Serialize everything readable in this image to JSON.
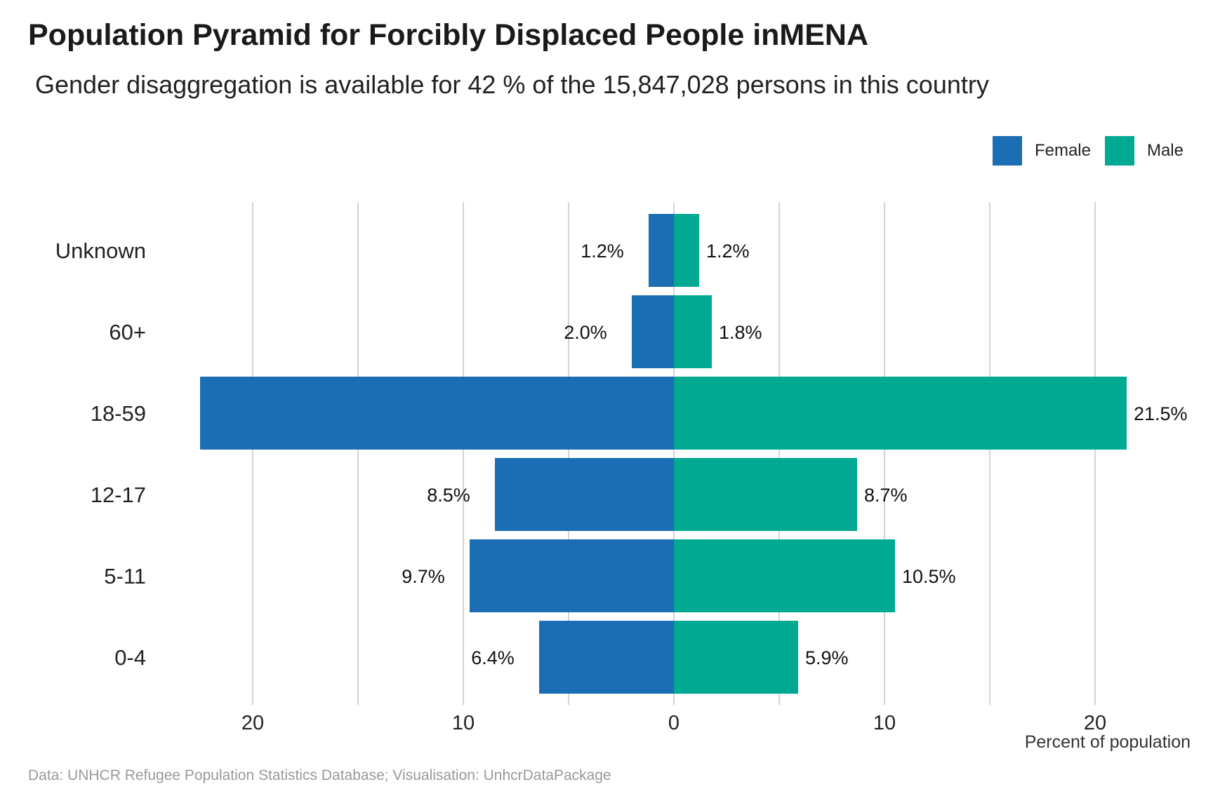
{
  "title": "Population Pyramid for Forcibly Displaced People inMENA",
  "subtitle": "Gender disaggregation is available for 42 % of the 15,847,028 persons in this country",
  "caption": "Data: UNHCR Refugee Population Statistics Database; Visualisation: UnhcrDataPackage",
  "legend": {
    "female": {
      "label": "Female",
      "color": "#1b6db4"
    },
    "male": {
      "label": "Male",
      "color": "#00a991"
    }
  },
  "chart_data": {
    "type": "bar",
    "orientation": "horizontal-diverging",
    "categories": [
      "Unknown",
      "60+",
      "18-59",
      "12-17",
      "5-11",
      "0-4"
    ],
    "series": [
      {
        "name": "Female",
        "values": [
          1.2,
          2.0,
          22.5,
          8.5,
          9.7,
          6.4
        ],
        "labels": [
          "1.2%",
          "2.0%",
          "",
          "8.5%",
          "9.7%",
          "6.4%"
        ],
        "color": "#1b6db4"
      },
      {
        "name": "Male",
        "values": [
          1.2,
          1.8,
          21.5,
          8.7,
          10.5,
          5.9
        ],
        "labels": [
          "1.2%",
          "1.8%",
          "21.5%",
          "8.7%",
          "10.5%",
          "5.9%"
        ],
        "color": "#00a991"
      }
    ],
    "xlabel": "Percent of population",
    "xlim": [
      -25,
      25
    ],
    "xticks": [
      -20,
      -10,
      0,
      10,
      20
    ],
    "xtick_labels": [
      "20",
      "10",
      "0",
      "10",
      "20"
    ],
    "grid": true,
    "legend_position": "top-right"
  }
}
